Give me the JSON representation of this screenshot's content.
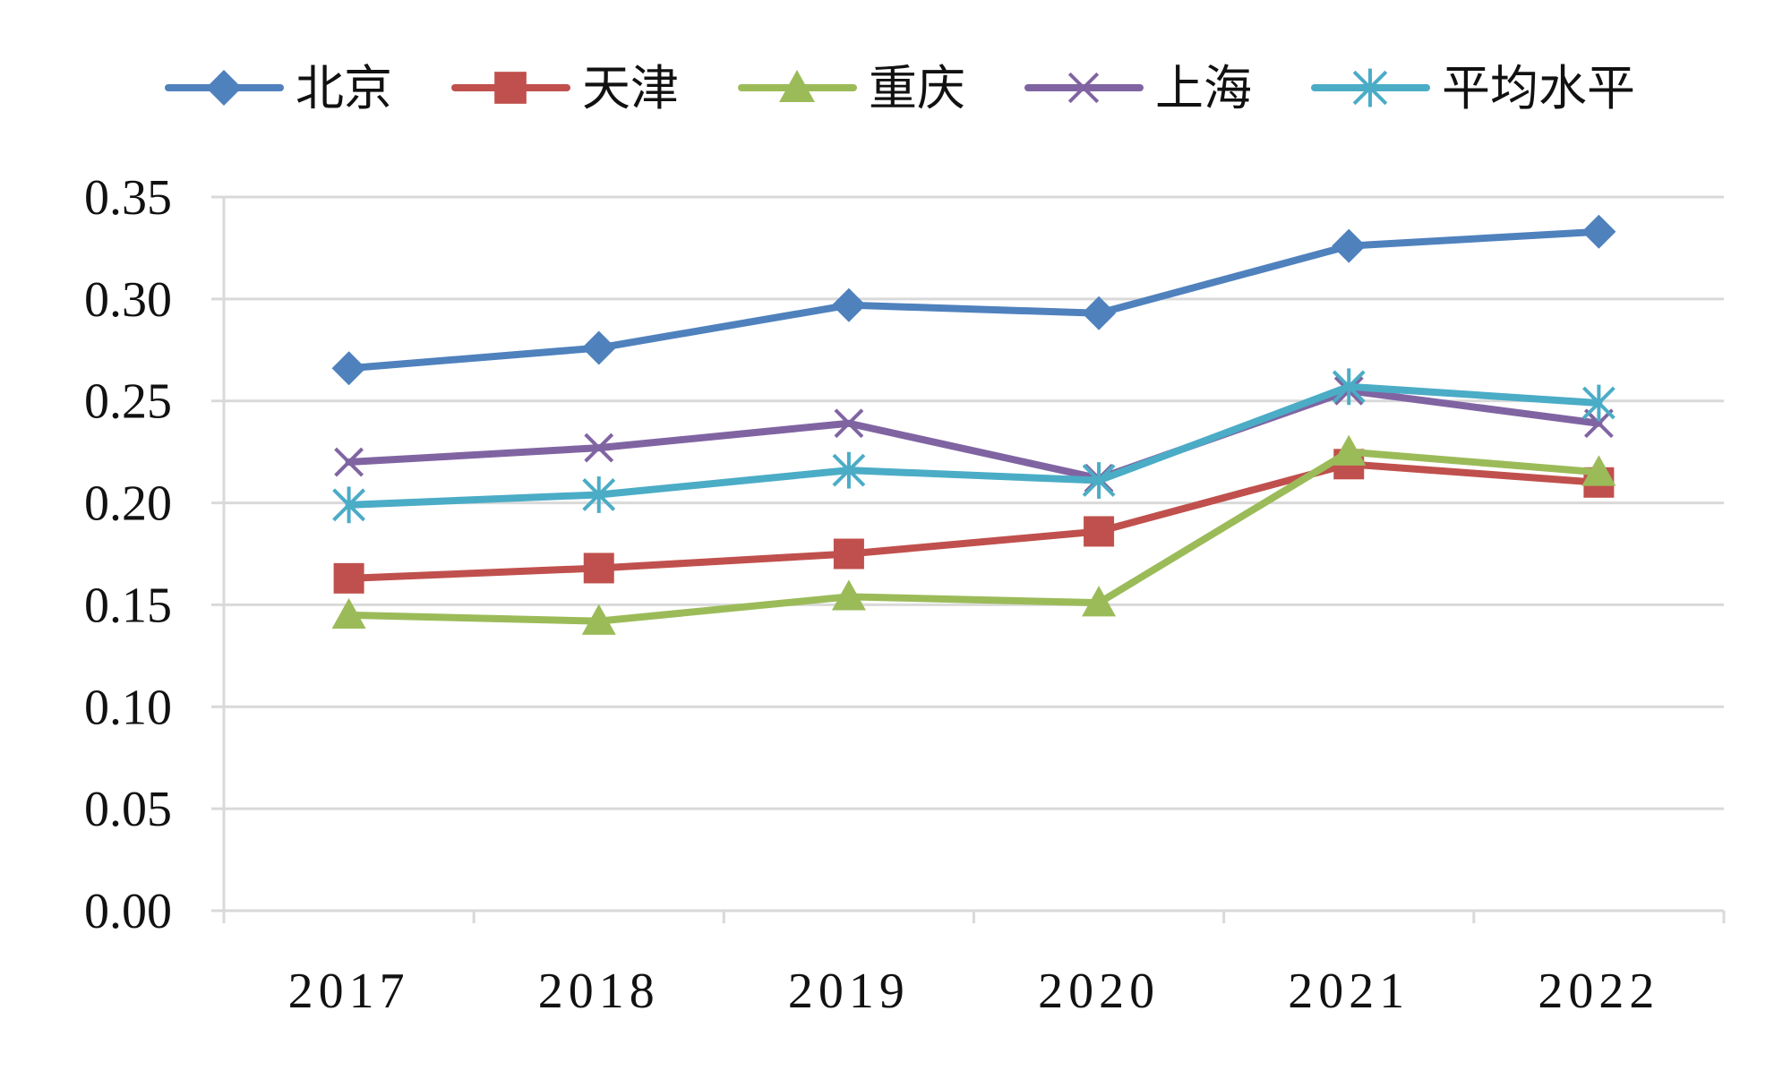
{
  "chart_data": {
    "type": "line",
    "title": "",
    "xlabel": "",
    "ylabel": "",
    "categories": [
      "2017",
      "2018",
      "2019",
      "2020",
      "2021",
      "2022"
    ],
    "ylim": [
      0,
      0.35
    ],
    "yticks": [
      "0.00",
      "0.05",
      "0.10",
      "0.15",
      "0.20",
      "0.25",
      "0.30",
      "0.35"
    ],
    "grid": true,
    "legend_position": "top",
    "series": [
      {
        "name": "北京",
        "color": "#4F81BD",
        "marker": "diamond",
        "values": [
          0.266,
          0.276,
          0.297,
          0.293,
          0.326,
          0.333
        ]
      },
      {
        "name": "天津",
        "color": "#C0504D",
        "marker": "square",
        "values": [
          0.163,
          0.168,
          0.175,
          0.186,
          0.219,
          0.21
        ]
      },
      {
        "name": "重庆",
        "color": "#9BBB59",
        "marker": "triangle",
        "values": [
          0.145,
          0.142,
          0.154,
          0.151,
          0.225,
          0.215
        ]
      },
      {
        "name": "上海",
        "color": "#8064A2",
        "marker": "x",
        "values": [
          0.22,
          0.227,
          0.239,
          0.212,
          0.255,
          0.239
        ]
      },
      {
        "name": "平均水平",
        "color": "#4BACC6",
        "marker": "star",
        "values": [
          0.199,
          0.204,
          0.216,
          0.211,
          0.257,
          0.249
        ]
      }
    ]
  }
}
